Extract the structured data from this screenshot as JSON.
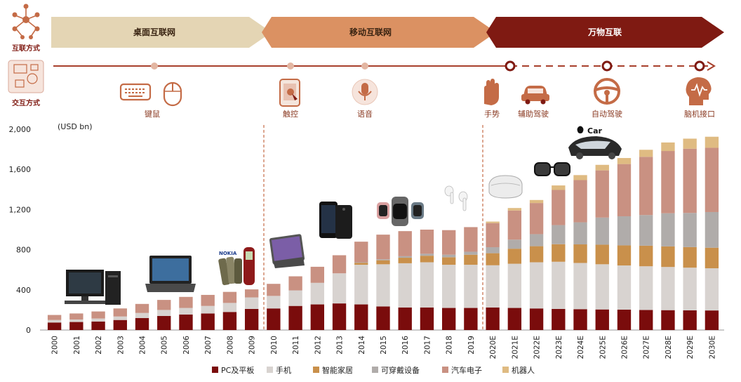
{
  "header": {
    "row_labels": [
      "互联方式",
      "交互方式"
    ],
    "eras": [
      "桌面互联网",
      "移动互联网",
      "万物互联"
    ],
    "interactions": [
      "键鼠",
      "触控",
      "语音",
      "手势",
      "辅助驾驶",
      "自动驾驶",
      "脑机接口"
    ],
    "icons": [
      "network-icon",
      "interaction-icon",
      "keyboard-icon",
      "mouse-icon",
      "tablet-touch-icon",
      "microphone-icon",
      "hand-gesture-icon",
      "car-icon",
      "steering-wheel-icon",
      "brain-icon"
    ]
  },
  "device_images": [
    "desktop-pc-image",
    "laptop-image",
    "feature-phones-image",
    "ipad-image",
    "iphone-image",
    "smartwatches-image",
    "airpods-image",
    "vr-headset-image",
    "ar-glasses-image",
    "apple-car-image"
  ],
  "apple_car_label": "Car",
  "colors": {
    "PC及平板": "#7a0c0c",
    "手机": "#d8d3d0",
    "智能家居": "#c9904b",
    "可穿戴设备": "#b0acaa",
    "汽车电子": "#c99182",
    "机器人": "#dfbb82",
    "era1": "#e4d5b4",
    "era2": "#db9162",
    "era3": "#7f1a12",
    "accent": "#c46b46"
  },
  "chart_data": {
    "type": "bar",
    "stacked": true,
    "unit_label": "(USD bn)",
    "ylim": [
      0,
      2000
    ],
    "yticks": [
      "0",
      "400",
      "800",
      "1,200",
      "1,600",
      "2,000"
    ],
    "ytick_values": [
      0,
      400,
      800,
      1200,
      1600,
      2000
    ],
    "grid": false,
    "legend_position": "bottom",
    "categories": [
      "2000",
      "2001",
      "2002",
      "2003",
      "2004",
      "2005",
      "2006",
      "2007",
      "2008",
      "2009",
      "2010",
      "2011",
      "2012",
      "2013",
      "2014",
      "2015",
      "2016",
      "2017",
      "2018",
      "2019",
      "2020E",
      "2021E",
      "2022E",
      "2023E",
      "2024E",
      "2025E",
      "2026E",
      "2027E",
      "2028E",
      "2029E",
      "2030E"
    ],
    "series": [
      {
        "name": "PC及平板",
        "values": [
          75,
          80,
          85,
          100,
          120,
          140,
          155,
          165,
          180,
          210,
          215,
          240,
          255,
          265,
          255,
          235,
          225,
          225,
          220,
          220,
          225,
          220,
          215,
          210,
          208,
          205,
          203,
          200,
          198,
          196,
          195
        ]
      },
      {
        "name": "手机",
        "values": [
          25,
          25,
          30,
          35,
          50,
          60,
          65,
          75,
          90,
          115,
          125,
          155,
          215,
          300,
          395,
          420,
          440,
          450,
          430,
          430,
          420,
          440,
          460,
          470,
          460,
          450,
          440,
          435,
          430,
          425,
          420
        ]
      },
      {
        "name": "智能家居",
        "values": [
          0,
          0,
          0,
          0,
          0,
          0,
          0,
          0,
          0,
          0,
          0,
          0,
          0,
          0,
          20,
          40,
          55,
          65,
          75,
          100,
          120,
          150,
          160,
          175,
          185,
          195,
          200,
          205,
          205,
          205,
          205
        ]
      },
      {
        "name": "可穿戴设备",
        "values": [
          0,
          0,
          0,
          0,
          0,
          0,
          0,
          0,
          0,
          0,
          0,
          0,
          0,
          0,
          5,
          10,
          15,
          20,
          25,
          30,
          60,
          90,
          120,
          190,
          220,
          270,
          290,
          305,
          330,
          340,
          355
        ]
      },
      {
        "name": "汽车电子",
        "values": [
          50,
          60,
          70,
          80,
          90,
          100,
          110,
          110,
          110,
          80,
          120,
          140,
          160,
          180,
          205,
          245,
          250,
          240,
          245,
          245,
          240,
          290,
          310,
          350,
          420,
          470,
          520,
          580,
          620,
          640,
          640
        ]
      },
      {
        "name": "机器人",
        "values": [
          0,
          0,
          0,
          0,
          0,
          0,
          0,
          0,
          0,
          0,
          0,
          0,
          0,
          0,
          0,
          0,
          0,
          0,
          0,
          0,
          15,
          25,
          30,
          45,
          50,
          55,
          60,
          70,
          85,
          100,
          110
        ]
      }
    ]
  }
}
